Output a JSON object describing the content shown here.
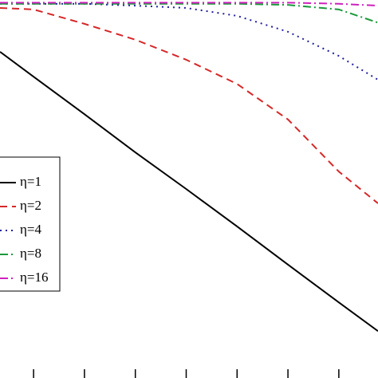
{
  "chart_data": {
    "type": "line",
    "x": [
      0.34,
      1,
      2,
      3,
      4,
      5,
      6,
      7,
      7.77
    ],
    "series": [
      {
        "name": "η=1",
        "color": "#000000",
        "dash": "solid",
        "values": [
          0.863,
          0.797,
          0.698,
          0.597,
          0.5,
          0.401,
          0.3,
          0.2,
          0.124
        ]
      },
      {
        "name": "η=2",
        "color": "#d62728",
        "dash": "dashed",
        "values": [
          0.979,
          0.975,
          0.937,
          0.895,
          0.842,
          0.778,
          0.684,
          0.546,
          0.462
        ]
      },
      {
        "name": "η=4",
        "color": "#1f1f9f",
        "dash": "dotted",
        "values": [
          0.99,
          0.99,
          0.99,
          0.985,
          0.979,
          0.958,
          0.916,
          0.852,
          0.789
        ]
      },
      {
        "name": "η=8",
        "color": "#1a9a3a",
        "dash": "dashdot",
        "values": [
          0.99,
          0.99,
          0.99,
          0.99,
          0.99,
          0.99,
          0.987,
          0.975,
          0.94
        ]
      },
      {
        "name": "η=16",
        "color": "#d020c0",
        "dash": "dashdot",
        "values": [
          0.993,
          0.993,
          0.993,
          0.993,
          0.993,
          0.993,
          0.993,
          0.99,
          0.985
        ]
      }
    ],
    "xlim": [
      0.34,
      7.77
    ],
    "ylim": [
      0,
      1
    ],
    "xticks": [
      1,
      2,
      3,
      4,
      5,
      6,
      7
    ],
    "legend": "left"
  }
}
